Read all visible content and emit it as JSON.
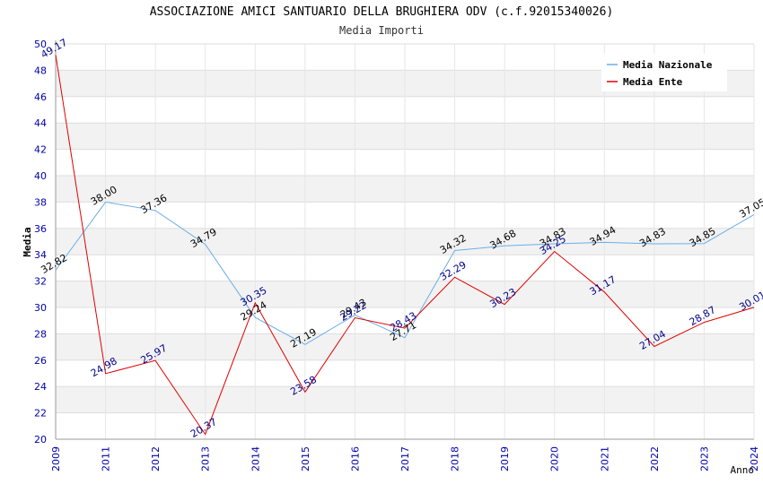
{
  "title": "ASSOCIAZIONE AMICI SANTUARIO DELLA BRUGHIERA ODV (c.f.92015340026)",
  "subtitle": "Media Importi",
  "chart_data": {
    "type": "line",
    "title": "ASSOCIAZIONE AMICI SANTUARIO DELLA BRUGHIERA ODV (c.f.92015340026)",
    "subtitle": "Media Importi",
    "xlabel": "Anno",
    "ylabel": "Media",
    "ylim": [
      20,
      50
    ],
    "yticks": [
      20,
      22,
      24,
      26,
      28,
      30,
      32,
      34,
      36,
      38,
      40,
      42,
      44,
      46,
      48,
      50
    ],
    "categories": [
      "2009",
      "2011",
      "2012",
      "2013",
      "2014",
      "2015",
      "2016",
      "2017",
      "2018",
      "2019",
      "2020",
      "2021",
      "2022",
      "2023",
      "2024"
    ],
    "grid": true,
    "legend_position": "top-right",
    "series": [
      {
        "name": "Media Nazionale",
        "color": "#6aaee8",
        "label_color": "#000000",
        "values": [
          32.82,
          38.0,
          37.36,
          34.79,
          29.24,
          27.19,
          29.43,
          27.71,
          34.32,
          34.68,
          34.83,
          34.94,
          34.83,
          34.85,
          37.05
        ],
        "labels": [
          "32.82",
          "38.00",
          "37.36",
          "34.79",
          "29.24",
          "27.19",
          "29.43",
          "27.71",
          "34.32",
          "34.68",
          "34.83",
          "34.94",
          "34.83",
          "34.85",
          "37.05"
        ]
      },
      {
        "name": "Media Ente",
        "color": "#e00000",
        "label_color": "#00008b",
        "values": [
          49.17,
          24.98,
          25.97,
          20.37,
          30.35,
          23.58,
          29.22,
          28.43,
          32.29,
          30.23,
          34.25,
          31.17,
          27.04,
          28.87,
          30.01
        ],
        "labels": [
          "49.17",
          "24.98",
          "25.97",
          "20.37",
          "30.35",
          "23.58",
          "29.22",
          "28.43",
          "32.29",
          "30.23",
          "34.25",
          "31.17",
          "27.04",
          "28.87",
          "30.01"
        ]
      }
    ]
  }
}
